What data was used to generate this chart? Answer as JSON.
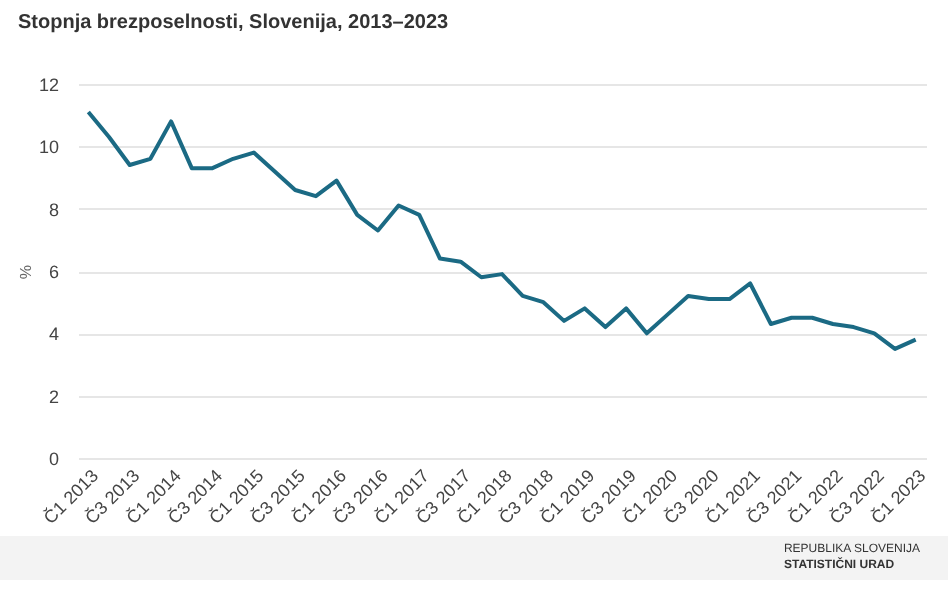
{
  "chart_data": {
    "type": "line",
    "title": "Stopnja brezposelnosti, Slovenija, 2013–2023",
    "ylabel": "%",
    "categories": [
      "Č1 2013",
      null,
      "Č3 2013",
      null,
      "Č1 2014",
      null,
      "Č3 2014",
      null,
      "Č1 2015",
      null,
      "Č3 2015",
      null,
      "Č1 2016",
      null,
      "Č3 2016",
      null,
      "Č1 2017",
      null,
      "Č3 2017",
      null,
      "Č1 2018",
      null,
      "Č3 2018",
      null,
      "Č1 2019",
      null,
      "Č3 2019",
      null,
      "Č1 2020",
      null,
      "Č3 2020",
      null,
      "Č1 2021",
      null,
      "Č3 2021",
      null,
      "Č1 2022",
      null,
      "Č3 2022",
      null,
      "Č1 2023"
    ],
    "series": [
      {
        "color": "#1b6a84",
        "values": [
          11.1,
          10.3,
          9.4,
          9.6,
          10.8,
          9.3,
          9.3,
          9.6,
          9.8,
          9.2,
          8.6,
          8.4,
          8.9,
          7.8,
          7.3,
          8.1,
          7.8,
          6.4,
          6.3,
          5.8,
          5.9,
          5.2,
          5.0,
          4.4,
          4.8,
          4.2,
          4.8,
          4.0,
          4.6,
          5.2,
          5.1,
          5.1,
          5.6,
          4.3,
          4.5,
          4.5,
          4.3,
          4.2,
          4.0,
          3.5,
          3.8
        ]
      }
    ],
    "ylim": [
      0,
      12
    ],
    "yticks": [
      0,
      2,
      4,
      6,
      8,
      10,
      12
    ],
    "grid": "y",
    "marker": "none",
    "line_style": "solid",
    "annotations": [
      "REPUBLIKA SLOVENIJA",
      "STATISTIČNI URAD"
    ]
  }
}
